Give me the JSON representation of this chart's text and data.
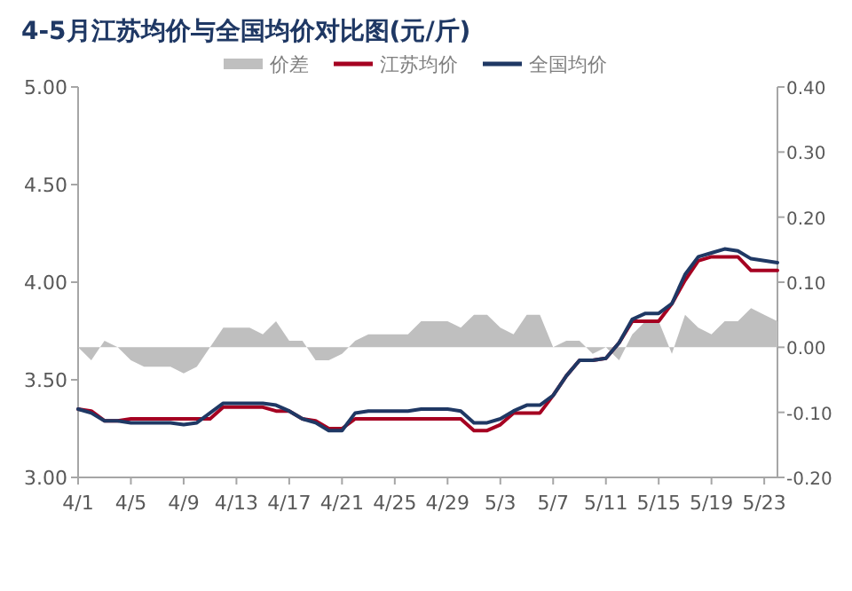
{
  "chart_data": {
    "type": "line",
    "title": "4-5月江苏均价与全国均价对比图(元/斤)",
    "categories": [
      "4/1",
      null,
      null,
      null,
      "4/5",
      null,
      null,
      null,
      "4/9",
      null,
      null,
      null,
      "4/13",
      null,
      null,
      null,
      "4/17",
      null,
      null,
      null,
      "4/21",
      null,
      null,
      null,
      "4/25",
      null,
      null,
      null,
      "4/29",
      null,
      null,
      null,
      "5/3",
      null,
      null,
      null,
      "5/7",
      null,
      null,
      null,
      "5/11",
      null,
      null,
      null,
      "5/15",
      null,
      null,
      null,
      "5/19",
      null,
      null,
      null,
      "5/23",
      null
    ],
    "series": [
      {
        "name": "价差",
        "type": "area",
        "axis": "y2",
        "color": "#bfbfbf",
        "values": [
          0,
          -0.02,
          0.01,
          0,
          -0.02,
          -0.03,
          -0.03,
          -0.03,
          -0.04,
          -0.03,
          0,
          0.03,
          0.03,
          0.03,
          0.02,
          0.04,
          0.01,
          0.01,
          -0.02,
          -0.02,
          -0.01,
          0.01,
          0.02,
          0.02,
          0.02,
          0.02,
          0.04,
          0.04,
          0.04,
          0.03,
          0.05,
          0.05,
          0.03,
          0.02,
          0.05,
          0.05,
          0,
          0.01,
          0.01,
          -0.01,
          0,
          -0.02,
          0.02,
          0.04,
          0.04,
          -0.01,
          0.05,
          0.03,
          0.02,
          0.04,
          0.04,
          0.06,
          0.05,
          0.04
        ]
      },
      {
        "name": "江苏均价",
        "type": "line",
        "color": "#a50021",
        "values": [
          3.35,
          3.34,
          3.29,
          3.29,
          3.3,
          3.3,
          3.3,
          3.3,
          3.3,
          3.3,
          3.3,
          3.36,
          3.36,
          3.36,
          3.36,
          3.34,
          3.34,
          3.3,
          3.29,
          3.25,
          3.25,
          3.3,
          3.3,
          3.3,
          3.3,
          3.3,
          3.3,
          3.3,
          3.3,
          3.3,
          3.24,
          3.24,
          3.27,
          3.33,
          3.33,
          3.33,
          3.42,
          3.52,
          3.6,
          3.6,
          3.61,
          3.69,
          3.8,
          3.8,
          3.8,
          3.89,
          4.01,
          4.11,
          4.13,
          4.13,
          4.13,
          4.06,
          4.06,
          4.06
        ]
      },
      {
        "name": "全国均价",
        "type": "line",
        "color": "#1f3864",
        "values": [
          3.35,
          3.33,
          3.29,
          3.29,
          3.28,
          3.28,
          3.28,
          3.28,
          3.27,
          3.28,
          3.33,
          3.38,
          3.38,
          3.38,
          3.38,
          3.37,
          3.34,
          3.3,
          3.28,
          3.24,
          3.24,
          3.33,
          3.34,
          3.34,
          3.34,
          3.34,
          3.35,
          3.35,
          3.35,
          3.34,
          3.28,
          3.28,
          3.3,
          3.34,
          3.37,
          3.37,
          3.42,
          3.52,
          3.6,
          3.6,
          3.61,
          3.69,
          3.81,
          3.84,
          3.84,
          3.89,
          4.04,
          4.13,
          4.15,
          4.17,
          4.16,
          4.12,
          4.11,
          4.1
        ]
      }
    ],
    "ylim": [
      3,
      5
    ],
    "yticks": [
      {
        "value": 3,
        "label": "3.00"
      },
      {
        "value": 3.5,
        "label": "3.50"
      },
      {
        "value": 4,
        "label": "4.00"
      },
      {
        "value": 4.5,
        "label": "4.50"
      },
      {
        "value": 5,
        "label": "5.00"
      }
    ],
    "y2lim": [
      -0.2,
      0.4
    ],
    "y2ticks": [
      {
        "value": -0.2,
        "label": "-0.20"
      },
      {
        "value": -0.1,
        "label": "-0.10"
      },
      {
        "value": 0,
        "label": "0.00"
      },
      {
        "value": 0.1,
        "label": "0.10"
      },
      {
        "value": 0.2,
        "label": "0.20"
      },
      {
        "value": 0.3,
        "label": "0.30"
      },
      {
        "value": 0.4,
        "label": "0.40"
      }
    ],
    "legend": "top"
  }
}
